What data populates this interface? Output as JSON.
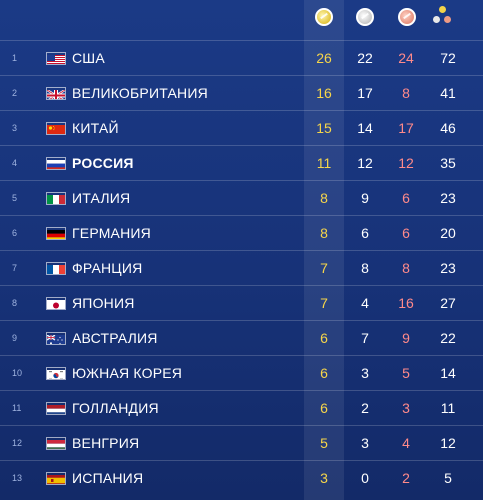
{
  "header": {
    "gold_icon": "gold-medal-icon",
    "silver_icon": "silver-medal-icon",
    "bronze_icon": "bronze-medal-icon",
    "total_icon": "total-medals-icon"
  },
  "colors": {
    "background": "#1b3a86",
    "gold": "#f6d54a",
    "bronze_text": "#ff8a8a",
    "rank_text": "#9fb3e0"
  },
  "rows": [
    {
      "rank": "1",
      "country": "США",
      "flag": "usa",
      "gold": "26",
      "silver": "22",
      "bronze": "24",
      "total": "72",
      "bold": false
    },
    {
      "rank": "2",
      "country": "ВЕЛИКОБРИТАНИЯ",
      "flag": "uk",
      "gold": "16",
      "silver": "17",
      "bronze": "8",
      "total": "41",
      "bold": false
    },
    {
      "rank": "3",
      "country": "КИТАЙ",
      "flag": "china",
      "gold": "15",
      "silver": "14",
      "bronze": "17",
      "total": "46",
      "bold": false
    },
    {
      "rank": "4",
      "country": "РОССИЯ",
      "flag": "russia",
      "gold": "11",
      "silver": "12",
      "bronze": "12",
      "total": "35",
      "bold": true
    },
    {
      "rank": "5",
      "country": "ИТАЛИЯ",
      "flag": "italy",
      "gold": "8",
      "silver": "9",
      "bronze": "6",
      "total": "23",
      "bold": false
    },
    {
      "rank": "6",
      "country": "ГЕРМАНИЯ",
      "flag": "germany",
      "gold": "8",
      "silver": "6",
      "bronze": "6",
      "total": "20",
      "bold": false
    },
    {
      "rank": "7",
      "country": "ФРАНЦИЯ",
      "flag": "france",
      "gold": "7",
      "silver": "8",
      "bronze": "8",
      "total": "23",
      "bold": false
    },
    {
      "rank": "8",
      "country": "ЯПОНИЯ",
      "flag": "japan",
      "gold": "7",
      "silver": "4",
      "bronze": "16",
      "total": "27",
      "bold": false
    },
    {
      "rank": "9",
      "country": "АВСТРАЛИЯ",
      "flag": "australia",
      "gold": "6",
      "silver": "7",
      "bronze": "9",
      "total": "22",
      "bold": false
    },
    {
      "rank": "10",
      "country": "ЮЖНАЯ КОРЕЯ",
      "flag": "korea",
      "gold": "6",
      "silver": "3",
      "bronze": "5",
      "total": "14",
      "bold": false
    },
    {
      "rank": "11",
      "country": "ГОЛЛАНДИЯ",
      "flag": "netherlands",
      "gold": "6",
      "silver": "2",
      "bronze": "3",
      "total": "11",
      "bold": false
    },
    {
      "rank": "12",
      "country": "ВЕНГРИЯ",
      "flag": "hungary",
      "gold": "5",
      "silver": "3",
      "bronze": "4",
      "total": "12",
      "bold": false
    },
    {
      "rank": "13",
      "country": "ИСПАНИЯ",
      "flag": "spain",
      "gold": "3",
      "silver": "0",
      "bronze": "2",
      "total": "5",
      "bold": false
    }
  ]
}
